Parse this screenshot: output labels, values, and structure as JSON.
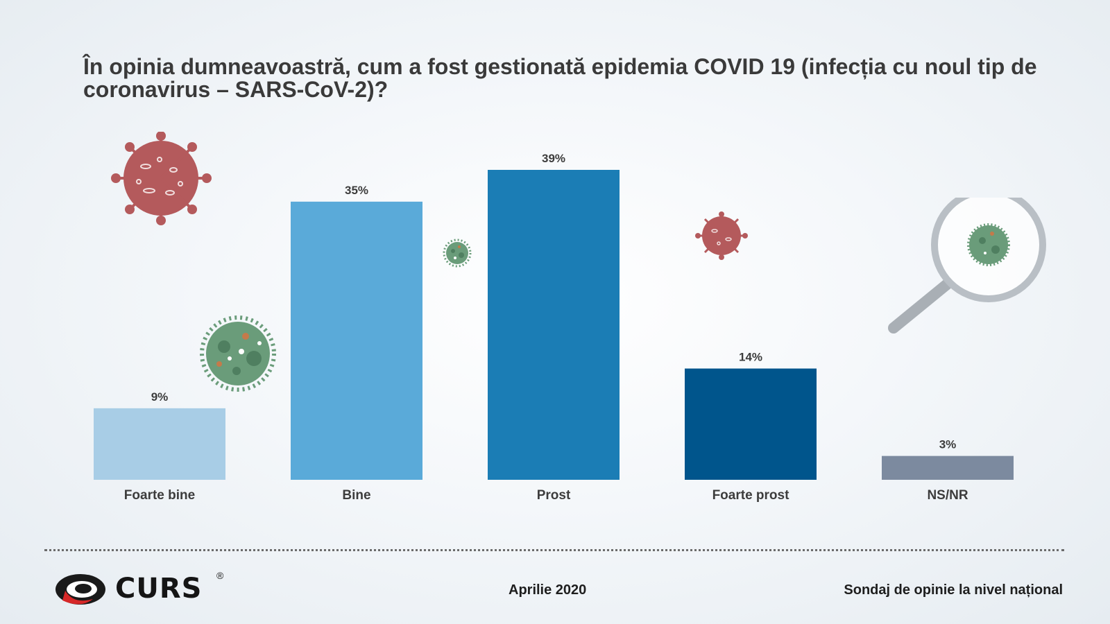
{
  "title": "În opinia dumneavoastră, cum a fost gestionată epidemia COVID 19 (infecția cu noul tip de coronavirus – SARS-CoV-2)?",
  "chart_data": {
    "type": "bar",
    "title": "În opinia dumneavoastră, cum a fost gestionată epidemia COVID 19 (infecția cu noul tip de coronavirus – SARS-CoV-2)?",
    "categories": [
      "Foarte bine",
      "Bine",
      "Prost",
      "Foarte prost",
      "NS/NR"
    ],
    "values": [
      9,
      35,
      39,
      14,
      3
    ],
    "value_labels": [
      "9%",
      "35%",
      "39%",
      "14%",
      "3%"
    ],
    "colors": [
      "#a8cde6",
      "#5aaad9",
      "#1b7db5",
      "#00558c",
      "#7c8a9f"
    ],
    "xlabel": "",
    "ylabel": "",
    "ylim": [
      0,
      39
    ],
    "grid": false,
    "legend": "none"
  },
  "footer": {
    "logo_text": "CURS",
    "logo_reg": "®",
    "date": "Aprilie 2020",
    "survey": "Sondaj de opinie la nivel național"
  },
  "icons": [
    "coronavirus-red-icon",
    "coronavirus-green-icon",
    "magnifier-icon",
    "curs-logo-icon"
  ],
  "colors": {
    "virus_red": "#b45a5c",
    "virus_green": "#6a9c7a",
    "logo_red": "#d62828"
  }
}
